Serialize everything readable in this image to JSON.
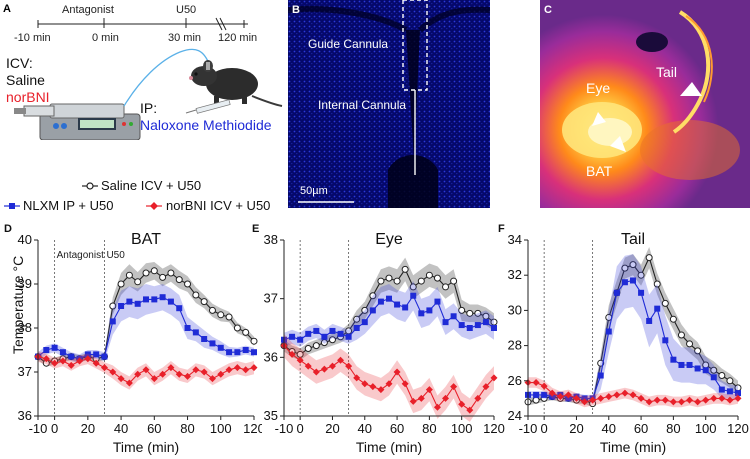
{
  "panel_a": {
    "label": "A",
    "timeline": {
      "antagonist": "Antagonist",
      "u50": "U50",
      "ticks": [
        "-10 min",
        "0 min",
        "30 min",
        "120 min"
      ]
    },
    "icv_title": "ICV:",
    "icv_saline": "Saline",
    "icv_norbni": "norBNI",
    "ip_title": "IP:",
    "ip_drug": "Naloxone Methiodide",
    "colors": {
      "norbni": "#e8202a",
      "nlxm": "#1f2bd6"
    }
  },
  "panel_b": {
    "label": "B",
    "guide": "Guide Cannula",
    "internal": "Internal Cannula",
    "scale": "50µm"
  },
  "panel_c": {
    "label": "C",
    "eye": "Eye",
    "tail": "Tail",
    "bat": "BAT"
  },
  "legend": {
    "saline": "Saline ICV + U50",
    "nlxm": "NLXM IP + U50",
    "norbni": "norBNI ICV + U50"
  },
  "ylabel": "Temperature °C",
  "chart_data": [
    {
      "panel": "D",
      "type": "line",
      "title": "BAT",
      "xlabel": "Time (min)",
      "ylabel": "Temperature °C",
      "xlim": [
        -10,
        120
      ],
      "ylim": [
        36,
        40
      ],
      "yticks": [
        36,
        37,
        38,
        39,
        40
      ],
      "xticks": [
        -10,
        0,
        20,
        40,
        60,
        80,
        100,
        120
      ],
      "vlines": [
        0,
        30
      ],
      "annotations": [
        "Antagonist",
        "U50"
      ],
      "x": [
        -10,
        -5,
        0,
        5,
        10,
        15,
        20,
        25,
        30,
        35,
        40,
        45,
        50,
        55,
        60,
        65,
        70,
        75,
        80,
        85,
        90,
        95,
        100,
        105,
        110,
        115,
        120
      ],
      "series": [
        {
          "name": "Saline ICV + U50",
          "color": "#222222",
          "marker": "circle",
          "values": [
            37.35,
            37.2,
            37.25,
            37.3,
            37.35,
            37.3,
            37.35,
            37.3,
            37.35,
            38.5,
            39.0,
            39.2,
            39.05,
            39.25,
            39.3,
            39.15,
            39.25,
            39.1,
            39.0,
            38.75,
            38.6,
            38.4,
            38.3,
            38.25,
            38.0,
            37.9,
            37.7
          ],
          "errors": [
            0.08,
            0.08,
            0.08,
            0.08,
            0.08,
            0.08,
            0.08,
            0.08,
            0.08,
            0.2,
            0.25,
            0.25,
            0.22,
            0.22,
            0.2,
            0.2,
            0.2,
            0.2,
            0.18,
            0.18,
            0.15,
            0.15,
            0.15,
            0.12,
            0.12,
            0.1,
            0.1
          ]
        },
        {
          "name": "NLXM IP + U50",
          "color": "#1f2bd6",
          "marker": "square",
          "values": [
            37.35,
            37.5,
            37.55,
            37.45,
            37.35,
            37.3,
            37.4,
            37.4,
            37.35,
            38.15,
            38.5,
            38.6,
            38.55,
            38.65,
            38.65,
            38.7,
            38.6,
            38.45,
            38.0,
            37.9,
            37.75,
            37.65,
            37.55,
            37.45,
            37.45,
            37.5,
            37.45
          ],
          "errors": [
            0.1,
            0.1,
            0.1,
            0.1,
            0.1,
            0.1,
            0.1,
            0.1,
            0.1,
            0.3,
            0.35,
            0.35,
            0.35,
            0.35,
            0.3,
            0.3,
            0.3,
            0.3,
            0.25,
            0.2,
            0.2,
            0.15,
            0.15,
            0.12,
            0.1,
            0.1,
            0.1
          ]
        },
        {
          "name": "norBNI ICV + U50",
          "color": "#e8202a",
          "marker": "diamond",
          "values": [
            37.35,
            37.3,
            37.2,
            37.25,
            37.15,
            37.25,
            37.3,
            37.2,
            37.1,
            37.0,
            36.85,
            36.75,
            36.95,
            37.05,
            36.85,
            36.95,
            37.1,
            36.95,
            36.9,
            37.05,
            37.0,
            36.85,
            36.95,
            37.05,
            37.1,
            37.05,
            37.1
          ],
          "errors": [
            0.12,
            0.12,
            0.12,
            0.12,
            0.12,
            0.12,
            0.12,
            0.12,
            0.12,
            0.15,
            0.15,
            0.15,
            0.15,
            0.15,
            0.15,
            0.15,
            0.15,
            0.15,
            0.15,
            0.15,
            0.15,
            0.15,
            0.15,
            0.15,
            0.15,
            0.15,
            0.15
          ]
        }
      ]
    },
    {
      "panel": "E",
      "type": "line",
      "title": "Eye",
      "xlabel": "Time (min)",
      "xlim": [
        -10,
        120
      ],
      "ylim": [
        35,
        38
      ],
      "yticks": [
        35,
        36,
        37,
        38
      ],
      "xticks": [
        -10,
        0,
        20,
        40,
        60,
        80,
        100,
        120
      ],
      "vlines": [
        0,
        30
      ],
      "x": [
        -10,
        -5,
        0,
        5,
        10,
        15,
        20,
        25,
        30,
        35,
        40,
        45,
        50,
        55,
        60,
        65,
        70,
        75,
        80,
        85,
        90,
        95,
        100,
        105,
        110,
        115,
        120
      ],
      "series": [
        {
          "name": "Saline ICV + U50",
          "color": "#222222",
          "marker": "circle",
          "values": [
            36.2,
            36.1,
            36.05,
            36.15,
            36.2,
            36.25,
            36.3,
            36.35,
            36.45,
            36.65,
            36.8,
            37.05,
            37.3,
            37.35,
            37.3,
            37.5,
            37.2,
            37.3,
            37.4,
            37.35,
            37.2,
            37.3,
            36.8,
            36.75,
            36.75,
            36.7,
            36.6
          ],
          "errors": [
            0.1,
            0.1,
            0.1,
            0.1,
            0.1,
            0.1,
            0.1,
            0.1,
            0.12,
            0.15,
            0.15,
            0.18,
            0.2,
            0.2,
            0.2,
            0.2,
            0.2,
            0.2,
            0.2,
            0.2,
            0.2,
            0.2,
            0.18,
            0.15,
            0.15,
            0.15,
            0.15
          ]
        },
        {
          "name": "NLXM IP + U50",
          "color": "#1f2bd6",
          "marker": "square",
          "values": [
            36.3,
            36.35,
            36.3,
            36.4,
            36.45,
            36.35,
            36.45,
            36.4,
            36.35,
            36.5,
            36.6,
            36.8,
            36.95,
            37.0,
            36.9,
            36.85,
            37.05,
            36.75,
            36.8,
            36.95,
            36.6,
            36.7,
            36.55,
            36.5,
            36.55,
            36.6,
            36.5
          ],
          "errors": [
            0.12,
            0.12,
            0.12,
            0.12,
            0.12,
            0.12,
            0.12,
            0.12,
            0.12,
            0.2,
            0.2,
            0.25,
            0.25,
            0.25,
            0.25,
            0.25,
            0.25,
            0.25,
            0.25,
            0.25,
            0.22,
            0.22,
            0.2,
            0.2,
            0.2,
            0.2,
            0.2
          ]
        },
        {
          "name": "norBNI ICV + U50",
          "color": "#e8202a",
          "marker": "diamond",
          "values": [
            36.2,
            36.05,
            35.95,
            35.85,
            35.75,
            35.8,
            35.85,
            35.95,
            35.85,
            35.65,
            35.55,
            35.5,
            35.45,
            35.55,
            35.75,
            35.55,
            35.25,
            35.3,
            35.45,
            35.15,
            35.3,
            35.5,
            35.2,
            35.1,
            35.3,
            35.5,
            35.65
          ],
          "errors": [
            0.2,
            0.2,
            0.2,
            0.2,
            0.2,
            0.2,
            0.2,
            0.2,
            0.2,
            0.2,
            0.2,
            0.2,
            0.2,
            0.2,
            0.2,
            0.2,
            0.2,
            0.2,
            0.2,
            0.2,
            0.2,
            0.2,
            0.2,
            0.2,
            0.2,
            0.2,
            0.2
          ]
        }
      ]
    },
    {
      "panel": "F",
      "type": "line",
      "title": "Tail",
      "xlabel": "Time (min)",
      "xlim": [
        -10,
        120
      ],
      "ylim": [
        24,
        34
      ],
      "yticks": [
        24,
        26,
        28,
        30,
        32,
        34
      ],
      "xticks": [
        -10,
        0,
        20,
        40,
        60,
        80,
        100,
        120
      ],
      "vlines": [
        0,
        30
      ],
      "x": [
        -10,
        -5,
        0,
        5,
        10,
        15,
        20,
        25,
        30,
        35,
        40,
        45,
        50,
        55,
        60,
        65,
        70,
        75,
        80,
        85,
        90,
        95,
        100,
        105,
        110,
        115,
        120
      ],
      "series": [
        {
          "name": "Saline ICV + U50",
          "color": "#222222",
          "marker": "circle",
          "values": [
            24.8,
            24.9,
            25.0,
            25.1,
            25.0,
            25.0,
            24.9,
            24.9,
            24.7,
            27.0,
            29.6,
            31.0,
            32.4,
            32.6,
            32.0,
            33.0,
            31.5,
            30.4,
            29.5,
            28.6,
            28.1,
            27.7,
            26.9,
            26.6,
            26.3,
            26.0,
            25.6
          ],
          "errors": [
            0.2,
            0.2,
            0.2,
            0.2,
            0.2,
            0.2,
            0.2,
            0.2,
            0.2,
            0.5,
            0.7,
            0.7,
            0.6,
            0.6,
            0.6,
            0.6,
            0.6,
            0.6,
            0.6,
            0.6,
            0.5,
            0.5,
            0.5,
            0.5,
            0.4,
            0.4,
            0.4
          ]
        },
        {
          "name": "NLXM IP + U50",
          "color": "#1f2bd6",
          "marker": "square",
          "values": [
            25.2,
            25.2,
            25.2,
            25.1,
            25.2,
            25.0,
            25.1,
            25.0,
            25.0,
            26.3,
            28.8,
            31.0,
            31.6,
            31.7,
            31.0,
            29.4,
            30.1,
            28.3,
            27.2,
            26.9,
            26.9,
            26.7,
            26.6,
            26.2,
            25.5,
            25.4,
            25.3
          ],
          "errors": [
            0.2,
            0.2,
            0.2,
            0.2,
            0.2,
            0.2,
            0.2,
            0.2,
            0.2,
            0.8,
            1.2,
            1.5,
            1.5,
            1.5,
            1.5,
            1.5,
            1.4,
            1.4,
            1.2,
            1.0,
            1.0,
            0.9,
            0.8,
            0.7,
            0.5,
            0.4,
            0.4
          ]
        },
        {
          "name": "norBNI ICV + U50",
          "color": "#e8202a",
          "marker": "diamond",
          "values": [
            25.9,
            25.9,
            25.7,
            25.3,
            25.1,
            25.2,
            25.0,
            24.8,
            24.9,
            25.0,
            25.1,
            25.2,
            25.3,
            25.2,
            25.0,
            24.8,
            24.9,
            24.9,
            24.8,
            24.8,
            24.9,
            24.8,
            24.9,
            25.0,
            25.0,
            24.9,
            25.0
          ],
          "errors": [
            0.3,
            0.3,
            0.3,
            0.3,
            0.3,
            0.3,
            0.3,
            0.3,
            0.3,
            0.3,
            0.3,
            0.3,
            0.3,
            0.3,
            0.3,
            0.3,
            0.3,
            0.3,
            0.3,
            0.3,
            0.3,
            0.3,
            0.3,
            0.3,
            0.3,
            0.3,
            0.3
          ]
        }
      ]
    }
  ]
}
